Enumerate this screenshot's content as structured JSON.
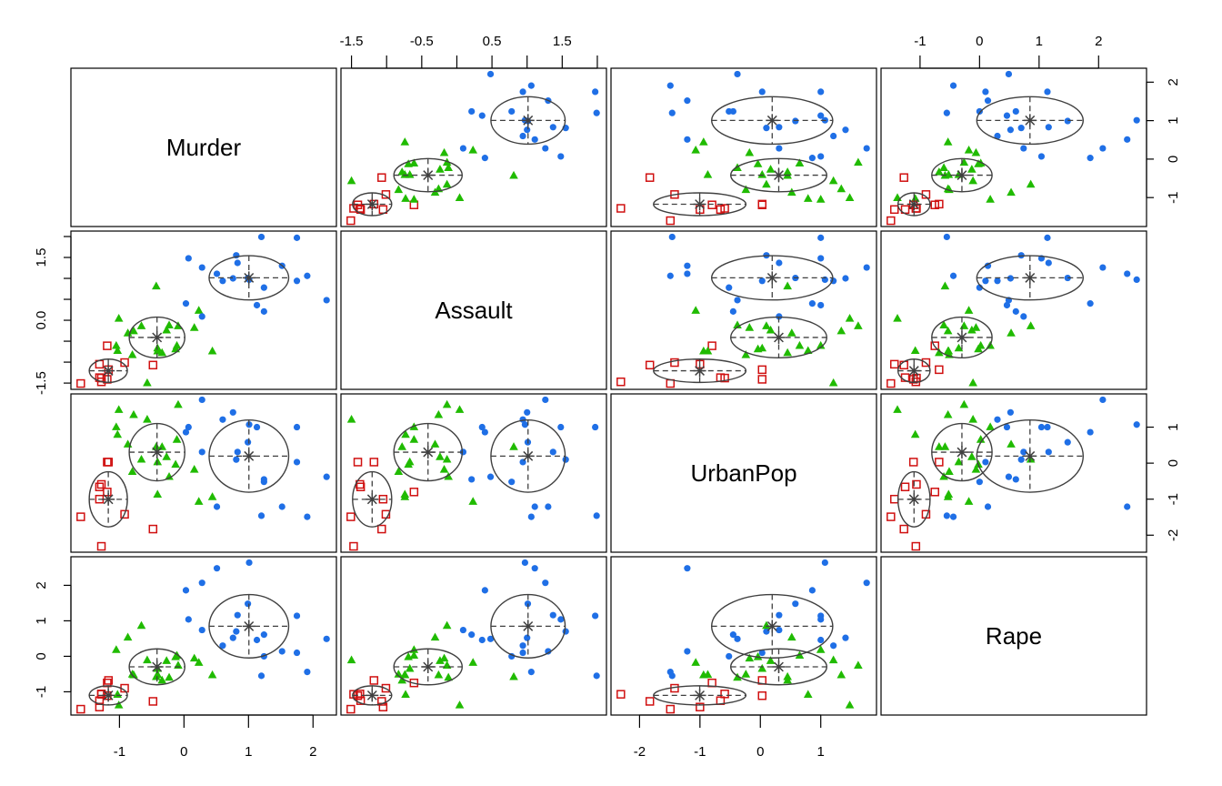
{
  "chart_data": {
    "type": "scatter",
    "subtype": "scatterplot-matrix",
    "variables": [
      "Murder",
      "Assault",
      "UrbanPop",
      "Rape"
    ],
    "groups": [
      {
        "id": 1,
        "color": "#1f6fe6",
        "marker": "filled-circle"
      },
      {
        "id": 2,
        "color": "#20bb00",
        "marker": "filled-triangle"
      },
      {
        "id": 3,
        "color": "#d01010",
        "marker": "open-square"
      }
    ],
    "group_overlay": "mean marker (asterisk) with dashed cross and ellipse of ±1 SD per group",
    "overlay_color": "#404040",
    "axes": {
      "Murder": {
        "ticks": [
          -1,
          0,
          1,
          2
        ],
        "labels": [
          "-1",
          "0",
          "1",
          "2"
        ]
      },
      "Assault": {
        "ticks": [
          -1.5,
          -1.0,
          -0.5,
          0.0,
          0.5,
          1.0,
          1.5,
          2.0
        ],
        "labels_top": [
          "-1.5",
          "",
          "-0.5",
          "",
          "0.5",
          "",
          "1.5",
          ""
        ],
        "labels_left": [
          "-1.5",
          "",
          "",
          "0.0",
          "",
          "",
          "1.5",
          ""
        ]
      },
      "UrbanPop": {
        "ticks": [
          -2,
          -1,
          0,
          1
        ],
        "labels": [
          "-2",
          "-1",
          "0",
          "1"
        ]
      },
      "Rape": {
        "ticks": [
          -1,
          0,
          1,
          2
        ],
        "labels": [
          "-1",
          "0",
          "1",
          "2"
        ]
      }
    },
    "point_fields": [
      "Murder",
      "Assault",
      "UrbanPop",
      "Rape",
      "group"
    ],
    "points": [
      [
        1.24,
        0.78,
        -0.52,
        0.0,
        1
      ],
      [
        0.51,
        1.11,
        -1.21,
        2.48,
        1
      ],
      [
        0.07,
        1.48,
        1.0,
        1.04,
        1
      ],
      [
        0.23,
        0.23,
        -1.07,
        -0.18,
        2
      ],
      [
        0.28,
        1.26,
        1.76,
        2.07,
        1
      ],
      [
        0.03,
        0.4,
        0.86,
        1.86,
        1
      ],
      [
        -1.03,
        -0.73,
        0.79,
        -1.08,
        2
      ],
      [
        -0.43,
        0.81,
        0.45,
        -0.58,
        2
      ],
      [
        1.75,
        1.97,
        1.0,
        1.14,
        1
      ],
      [
        2.21,
        0.48,
        -0.38,
        0.49,
        1
      ],
      [
        -0.57,
        -1.5,
        1.21,
        -0.11,
        2
      ],
      [
        -1.19,
        -0.61,
        -0.8,
        -0.75,
        3
      ],
      [
        0.6,
        0.94,
        1.21,
        0.3,
        1
      ],
      [
        -0.13,
        -0.69,
        -0.04,
        -0.02,
        2
      ],
      [
        -1.28,
        -1.38,
        -0.59,
        -1.06,
        3
      ],
      [
        -0.41,
        -0.67,
        0.03,
        -0.35,
        2
      ],
      [
        0.44,
        -0.74,
        -0.94,
        -0.53,
        2
      ],
      [
        1.75,
        0.94,
        0.03,
        0.1,
        1
      ],
      [
        -1.31,
        -1.05,
        -1.0,
        -1.43,
        3
      ],
      [
        0.81,
        1.55,
        0.1,
        0.7,
        1
      ],
      [
        -0.78,
        -0.26,
        1.34,
        -0.53,
        2
      ],
      [
        0.99,
        1.01,
        0.58,
        1.48,
        1
      ],
      [
        -1.17,
        -1.18,
        0.03,
        -0.68,
        3
      ],
      [
        1.91,
        1.06,
        -1.49,
        -0.44,
        1
      ],
      [
        0.28,
        0.09,
        0.31,
        0.74,
        1
      ],
      [
        -0.41,
        -0.74,
        -0.87,
        -0.52,
        2
      ],
      [
        -0.8,
        -0.83,
        -0.24,
        -0.51,
        2
      ],
      [
        1.01,
        0.97,
        1.07,
        2.64,
        1
      ],
      [
        -1.31,
        -1.37,
        -0.66,
        -1.25,
        3
      ],
      [
        -0.09,
        -0.14,
        1.62,
        -0.26,
        2
      ],
      [
        0.83,
        1.37,
        0.31,
        1.16,
        1
      ],
      [
        0.76,
        1.0,
        1.41,
        0.52,
        1
      ],
      [
        1.2,
        1.99,
        -1.46,
        -0.55,
        1
      ],
      [
        -1.6,
        -1.51,
        -1.49,
        -1.49,
        3
      ],
      [
        -0.11,
        -0.61,
        0.65,
        0.02,
        2
      ],
      [
        -0.27,
        -0.24,
        0.17,
        -0.13,
        2
      ],
      [
        -0.66,
        -0.14,
        0.1,
        0.86,
        2
      ],
      [
        -0.34,
        -0.78,
        0.45,
        -0.68,
        2
      ],
      [
        -1.01,
        0.04,
        1.48,
        -1.38,
        2
      ],
      [
        1.52,
        1.3,
        -1.21,
        0.14,
        1
      ],
      [
        -0.92,
        -1.01,
        -1.42,
        -0.9,
        3
      ],
      [
        1.24,
        0.21,
        -0.45,
        0.61,
        1
      ],
      [
        1.13,
        0.36,
        1.0,
        0.46,
        1
      ],
      [
        -1.05,
        -0.61,
        1.0,
        0.18,
        2
      ],
      [
        -1.28,
        -1.47,
        -2.31,
        -1.07,
        3
      ],
      [
        0.16,
        -0.18,
        -0.18,
        -0.06,
        2
      ],
      [
        -0.87,
        -0.31,
        0.52,
        0.53,
        2
      ],
      [
        -0.48,
        -1.07,
        -1.83,
        -1.27,
        3
      ],
      [
        -1.19,
        -1.41,
        0.03,
        -1.11,
        3
      ],
      [
        -0.23,
        -0.12,
        -0.38,
        -0.6,
        2
      ]
    ]
  }
}
